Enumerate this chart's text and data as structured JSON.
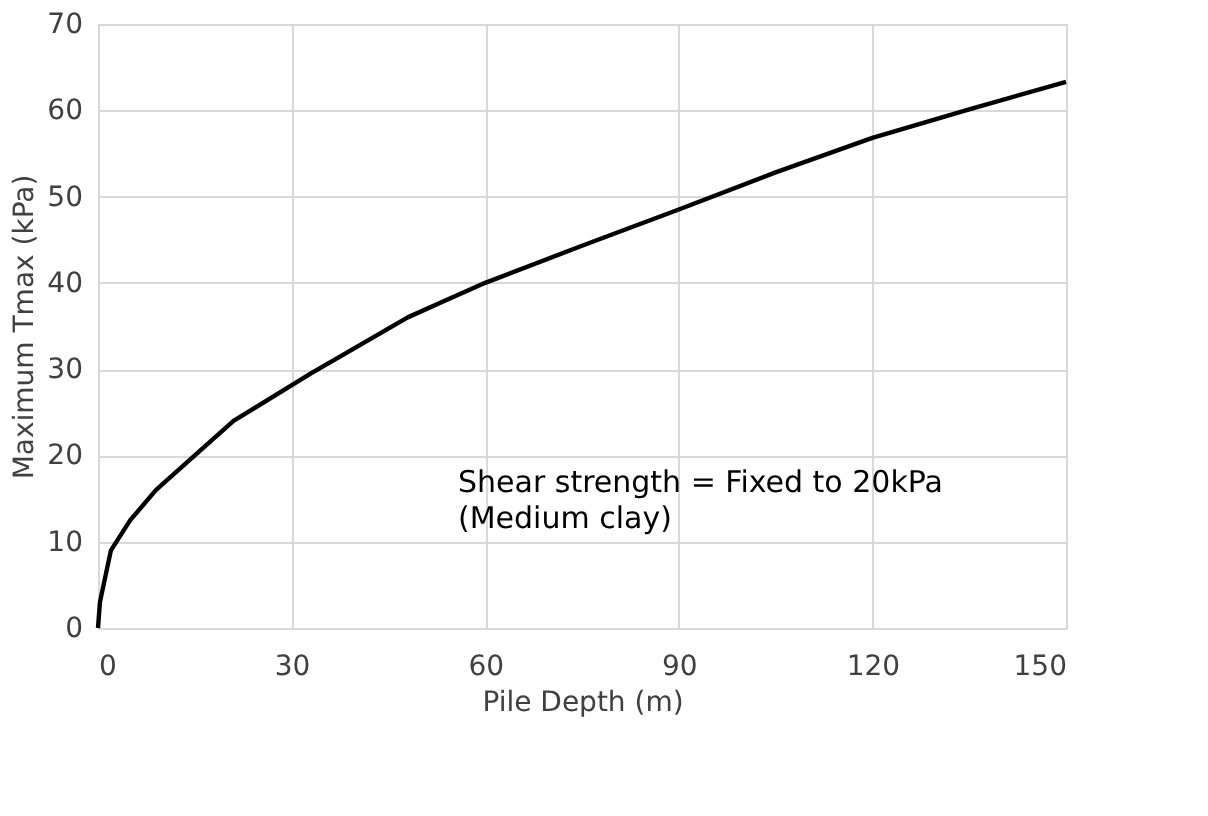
{
  "chart_data": {
    "type": "line",
    "xlabel": "Pile Depth (m)",
    "ylabel": "Maximum Tmax (kPa)",
    "x": [
      0,
      0.3,
      2,
      5,
      9,
      15,
      21,
      33,
      48,
      54,
      60,
      75,
      90,
      105,
      120,
      135,
      150
    ],
    "series": [
      {
        "color": "#000000",
        "values": [
          0,
          3,
          9,
          12.5,
          16,
          20,
          24,
          29.5,
          36,
          38,
          40,
          44.3,
          48.5,
          52.8,
          56.8,
          60.1,
          63.3
        ]
      }
    ],
    "xlim": [
      0,
      150
    ],
    "xticks": [
      0,
      30,
      60,
      90,
      120,
      150
    ],
    "ylim": [
      0,
      70
    ],
    "yticks": [
      0,
      10,
      20,
      30,
      40,
      50,
      60,
      70
    ],
    "grid": true,
    "marker": "none",
    "line_style": "solid",
    "annotations": [
      "Shear strength = Fixed to 20kPa",
      "(Medium clay)"
    ]
  }
}
